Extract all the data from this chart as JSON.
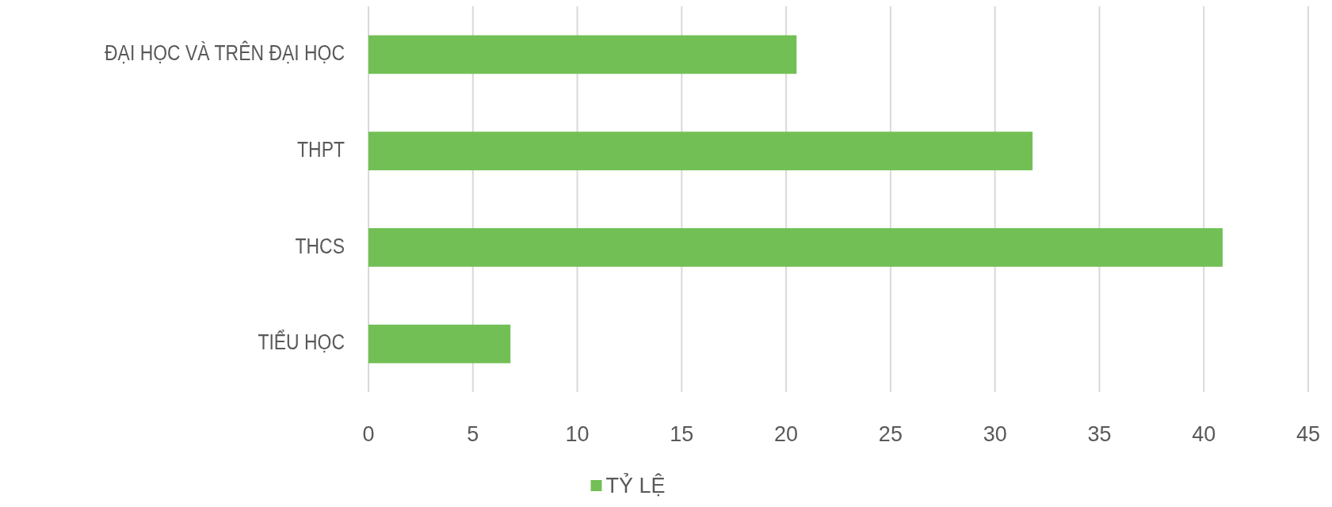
{
  "chart_data": {
    "type": "bar",
    "orientation": "horizontal",
    "categories": [
      "ĐẠI HỌC VÀ TRÊN ĐẠI HỌC",
      "THPT",
      "THCS",
      "TIỂU HỌC"
    ],
    "series": [
      {
        "name": "TỶ LỆ",
        "color": "#72bf55",
        "values": [
          20.5,
          31.8,
          40.9,
          6.8
        ]
      }
    ],
    "xlim": [
      0,
      45
    ],
    "xticks": [
      0,
      5,
      10,
      15,
      20,
      25,
      30,
      35,
      40,
      45
    ],
    "grid": "x",
    "legend": "bottom"
  }
}
